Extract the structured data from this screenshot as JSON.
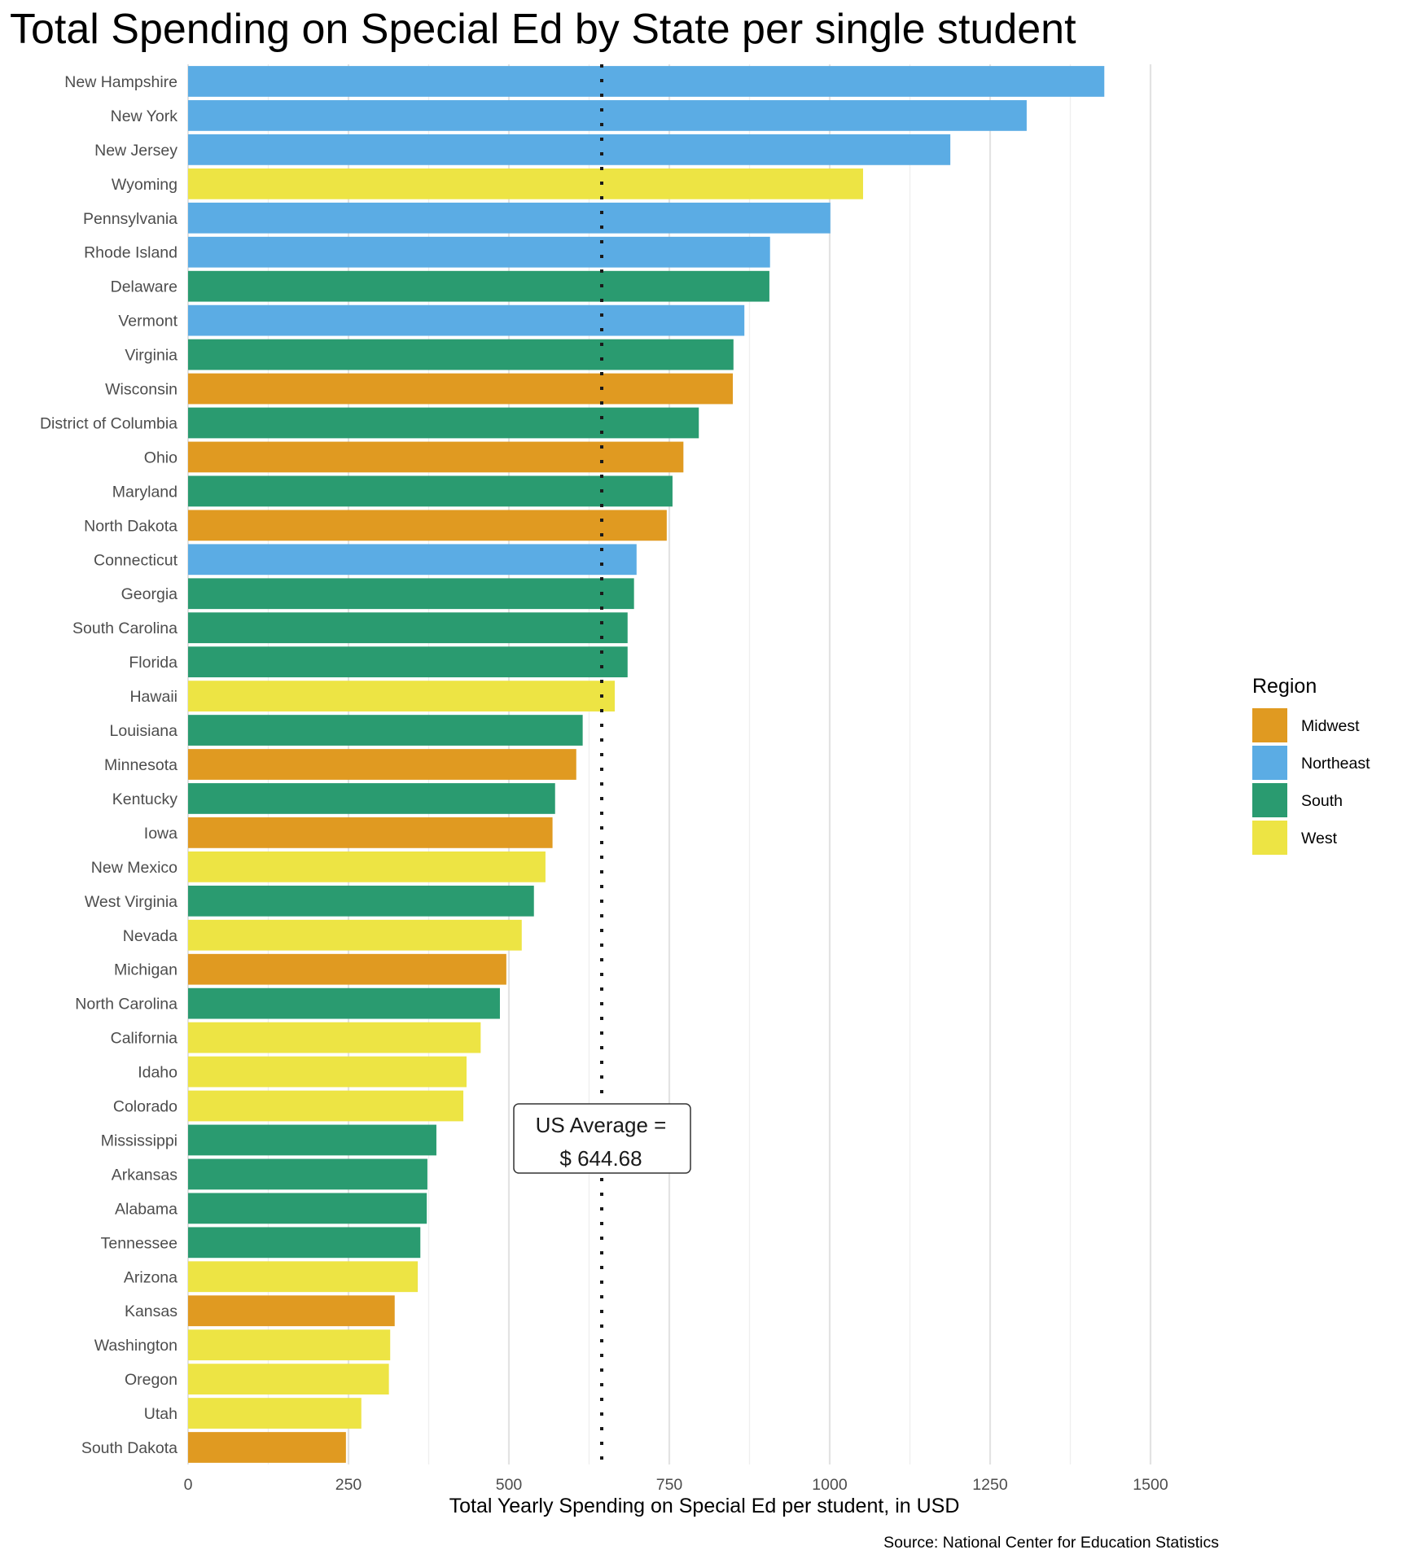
{
  "chart_data": {
    "type": "bar",
    "orientation": "horizontal",
    "title": "Total Spending on Special Ed by State per single student",
    "xlabel": "Total Yearly Spending on Special Ed per student, in USD",
    "ylabel": "",
    "caption": "Source: National Center for Education Statistics",
    "xlim": [
      0,
      1500
    ],
    "xticks": [
      0,
      250,
      500,
      750,
      1000,
      1250,
      1500
    ],
    "xtick_labels": [
      "0",
      "250",
      "500",
      "750",
      "1000",
      "1250",
      "1500"
    ],
    "grid": true,
    "legend": {
      "title": "Region",
      "placement": "right",
      "entries": [
        {
          "name": "Midwest",
          "color": "#E09A21"
        },
        {
          "name": "Northeast",
          "color": "#5BACE4"
        },
        {
          "name": "South",
          "color": "#2A9B70"
        },
        {
          "name": "West",
          "color": "#EDE444"
        }
      ]
    },
    "reference_line": {
      "value": 644.68,
      "style": "dotted",
      "label_line1": "US Average =",
      "label_line2": "$ 644.68"
    },
    "categories": [
      "New Hampshire",
      "New York",
      "New Jersey",
      "Wyoming",
      "Pennsylvania",
      "Rhode Island",
      "Delaware",
      "Vermont",
      "Virginia",
      "Wisconsin",
      "District of Columbia",
      "Ohio",
      "Maryland",
      "North Dakota",
      "Connecticut",
      "Georgia",
      "South Carolina",
      "Florida",
      "Hawaii",
      "Louisiana",
      "Minnesota",
      "Kentucky",
      "Iowa",
      "New Mexico",
      "West Virginia",
      "Nevada",
      "Michigan",
      "North Carolina",
      "California",
      "Idaho",
      "Colorado",
      "Mississippi",
      "Arkansas",
      "Alabama",
      "Tennessee",
      "Arizona",
      "Kansas",
      "Washington",
      "Oregon",
      "Utah",
      "South Dakota"
    ],
    "values": [
      1428,
      1307,
      1188,
      1052,
      1001,
      907,
      906,
      867,
      850,
      849,
      796,
      772,
      755,
      746,
      699,
      695,
      685,
      685,
      665,
      615,
      605,
      572,
      568,
      557,
      539,
      520,
      496,
      486,
      456,
      434,
      429,
      387,
      373,
      372,
      362,
      358,
      322,
      315,
      313,
      270,
      246
    ],
    "regions": [
      "Northeast",
      "Northeast",
      "Northeast",
      "West",
      "Northeast",
      "Northeast",
      "South",
      "Northeast",
      "South",
      "Midwest",
      "South",
      "Midwest",
      "South",
      "Midwest",
      "Northeast",
      "South",
      "South",
      "South",
      "West",
      "South",
      "Midwest",
      "South",
      "Midwest",
      "West",
      "South",
      "West",
      "Midwest",
      "South",
      "West",
      "West",
      "West",
      "South",
      "South",
      "South",
      "South",
      "West",
      "Midwest",
      "West",
      "West",
      "West",
      "Midwest"
    ]
  }
}
